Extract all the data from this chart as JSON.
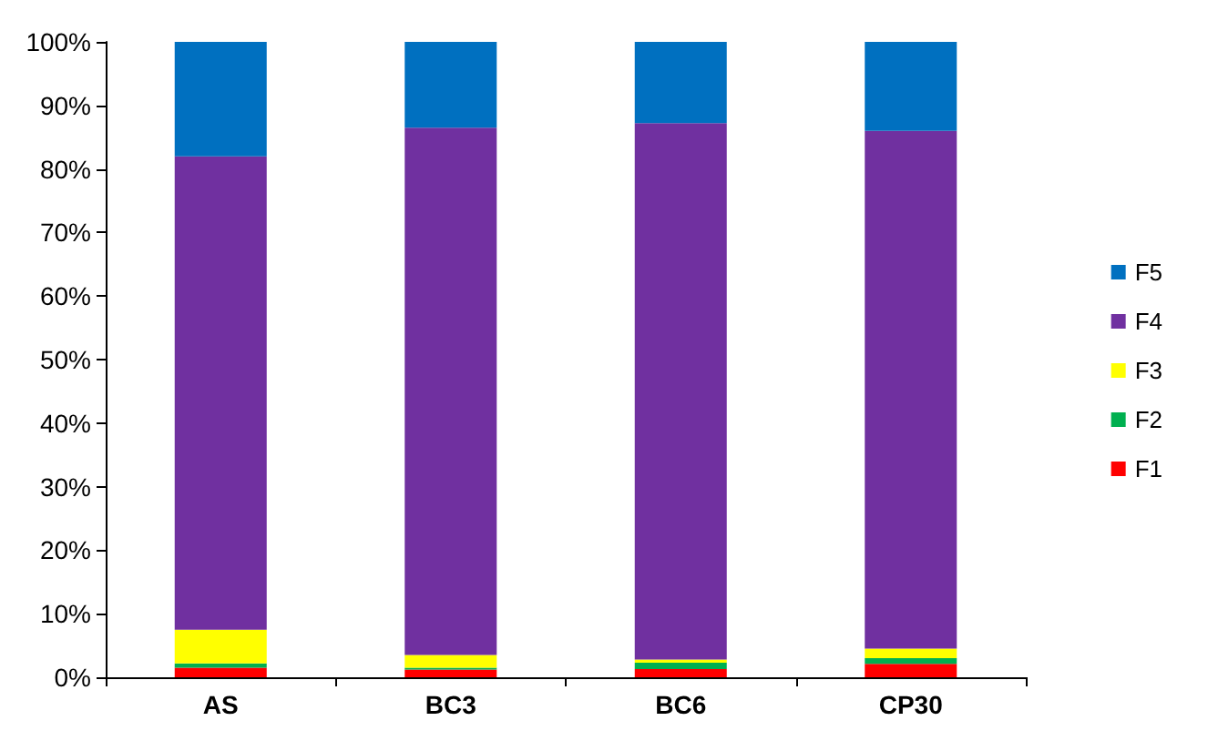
{
  "chart_data": {
    "type": "bar",
    "stacked": true,
    "categories": [
      "AS",
      "BC3",
      "BC6",
      "CP30"
    ],
    "series": [
      {
        "name": "F1",
        "color": "#ff0000",
        "values": [
          1.5,
          1.2,
          1.3,
          2.1
        ]
      },
      {
        "name": "F2",
        "color": "#00b050",
        "values": [
          0.7,
          0.3,
          1.0,
          0.9
        ]
      },
      {
        "name": "F3",
        "color": "#ffff00",
        "values": [
          5.3,
          2.0,
          0.5,
          1.5
        ]
      },
      {
        "name": "F4",
        "color": "#7030a0",
        "values": [
          74.5,
          83.0,
          84.4,
          81.5
        ]
      },
      {
        "name": "F5",
        "color": "#0070c0",
        "values": [
          18.0,
          13.5,
          12.8,
          14.0
        ]
      }
    ],
    "ylim": [
      0,
      100
    ],
    "yticks": [
      {
        "value": 0,
        "label": "0%"
      },
      {
        "value": 10,
        "label": "10%"
      },
      {
        "value": 20,
        "label": "20%"
      },
      {
        "value": 30,
        "label": "30%"
      },
      {
        "value": 40,
        "label": "40%"
      },
      {
        "value": 50,
        "label": "50%"
      },
      {
        "value": 60,
        "label": "60%"
      },
      {
        "value": 70,
        "label": "70%"
      },
      {
        "value": 80,
        "label": "80%"
      },
      {
        "value": 90,
        "label": "90%"
      },
      {
        "value": 100,
        "label": "100%"
      }
    ],
    "grid": false,
    "legend": "right"
  }
}
